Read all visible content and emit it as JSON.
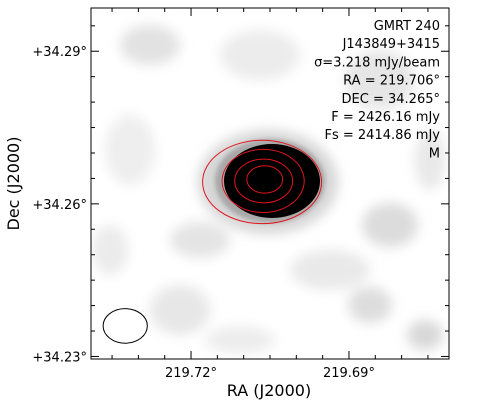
{
  "chart_data": {
    "type": "heatmap",
    "title": "",
    "xlabel": "RA (J2000)",
    "ylabel": "Dec (J2000)",
    "xlim": [
      219.739,
      219.671
    ],
    "ylim": [
      34.2295,
      34.2985
    ],
    "x_ticks": [
      {
        "value": 219.72,
        "label": "219.72°"
      },
      {
        "value": 219.69,
        "label": "219.69°"
      }
    ],
    "y_ticks": [
      {
        "value": 34.29,
        "label": "+34.29°"
      },
      {
        "value": 34.26,
        "label": "+34.26°"
      },
      {
        "value": 34.23,
        "label": "+34.23°"
      }
    ],
    "annotations": [
      "GMRT 240",
      "J143849+3415",
      "σ=3.218 mJy/beam",
      "RA = 219.706°",
      "DEC = 34.265°",
      "F = 2426.16 mJy",
      "Fs = 2414.86 mJy",
      "M"
    ],
    "source": {
      "ra": 219.706,
      "dec": 34.265
    },
    "contours": [
      {
        "level": 1,
        "ra": 219.7065,
        "dec": 34.2643,
        "rx": 0.0113,
        "ry": 0.0082
      },
      {
        "level": 2,
        "ra": 219.7063,
        "dec": 34.2645,
        "rx": 0.0078,
        "ry": 0.0062
      },
      {
        "level": 3,
        "ra": 219.7062,
        "dec": 34.2645,
        "rx": 0.0055,
        "ry": 0.0043
      },
      {
        "level": 4,
        "ra": 219.706,
        "dec": 34.2648,
        "rx": 0.0034,
        "ry": 0.0027
      }
    ],
    "beam": {
      "ra": 219.7325,
      "dec": 34.236,
      "rx": 0.0042,
      "ry": 0.0034
    },
    "colors": {
      "image": "#000000",
      "contour": "#e0141e",
      "beam": "#000000",
      "background": "#ffffff"
    },
    "grid": false,
    "colorbar": false
  }
}
